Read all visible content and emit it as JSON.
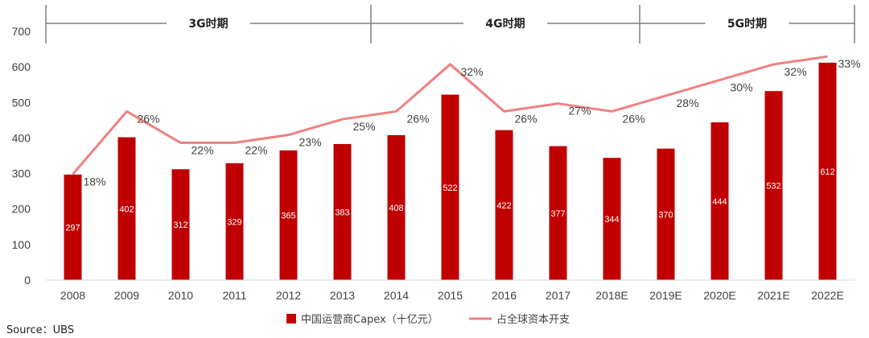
{
  "chart_data": {
    "type": "bar",
    "categories": [
      "2008",
      "2009",
      "2010",
      "2011",
      "2012",
      "2013",
      "2014",
      "2015",
      "2016",
      "2017",
      "2018E",
      "2019E",
      "2020E",
      "2021E",
      "2022E"
    ],
    "series": [
      {
        "name": "中国运营商Capex（十亿元）",
        "type": "bar",
        "axis": "left",
        "values": [
          297,
          402,
          312,
          329,
          365,
          383,
          408,
          522,
          422,
          377,
          344,
          370,
          444,
          532,
          612
        ],
        "labels": [
          "297",
          "402",
          "312",
          "329",
          "365",
          "383",
          "408",
          "522",
          "422",
          "377",
          "344",
          "370",
          "444",
          "532",
          "612"
        ]
      },
      {
        "name": "占全球资本开支",
        "type": "line",
        "axis": "right",
        "values": [
          18,
          26,
          22,
          22,
          23,
          25,
          26,
          32,
          26,
          27,
          26,
          28,
          30,
          32,
          33
        ],
        "labels": [
          "18%",
          "26%",
          "22%",
          "22%",
          "23%",
          "25%",
          "26%",
          "32%",
          "26%",
          "27%",
          "26%",
          "28%",
          "30%",
          "32%",
          "33%"
        ]
      }
    ],
    "ylim": [
      0,
      700
    ],
    "y_ticks": [
      "0",
      "100",
      "200",
      "300",
      "400",
      "500",
      "600",
      "700"
    ],
    "y2lim": [
      4.5,
      36.2
    ],
    "eras": [
      {
        "label": "3G时期",
        "start": "2008",
        "end": "2013"
      },
      {
        "label": "4G时期",
        "start": "2014",
        "end": "2018E"
      },
      {
        "label": "5G时期",
        "start": "2019E",
        "end": "2022E"
      }
    ],
    "grid": false,
    "legend_position": "bottom"
  },
  "colors": {
    "bar": "#c00000",
    "line": "#f08080",
    "axis": "#d9d9d9",
    "bracket": "#7f7f7f"
  },
  "source": "Source：UBS"
}
